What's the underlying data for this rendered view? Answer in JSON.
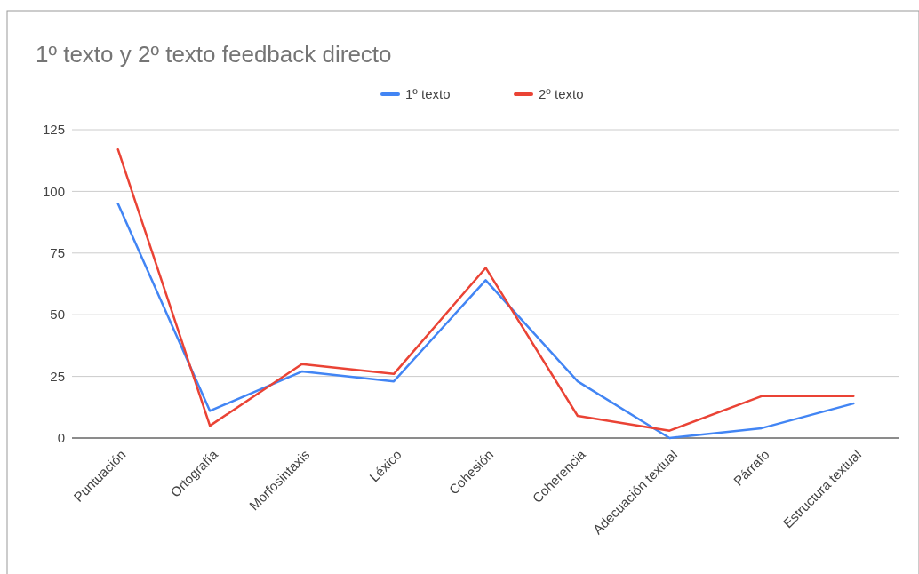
{
  "chart_data": {
    "type": "line",
    "title": "1º texto y 2º texto feedback directo",
    "categories": [
      "Puntuación",
      "Ortografía",
      "Morfosintaxis",
      "Léxico",
      "Cohesión",
      "Coherencia",
      "Adecuación textual",
      "Párrafo",
      "Estructura textual"
    ],
    "series": [
      {
        "name": "1º texto",
        "color": "#4285f4",
        "values": [
          95,
          11,
          27,
          23,
          64,
          23,
          0,
          4,
          14
        ]
      },
      {
        "name": "2º texto",
        "color": "#ea4335",
        "values": [
          117,
          5,
          30,
          26,
          69,
          9,
          3,
          17,
          17
        ]
      }
    ],
    "ylim": [
      0,
      125
    ],
    "yticks": [
      0,
      25,
      50,
      75,
      100,
      125
    ],
    "grid": "y",
    "legend": "top",
    "marker": "none",
    "line_style": "solid"
  }
}
